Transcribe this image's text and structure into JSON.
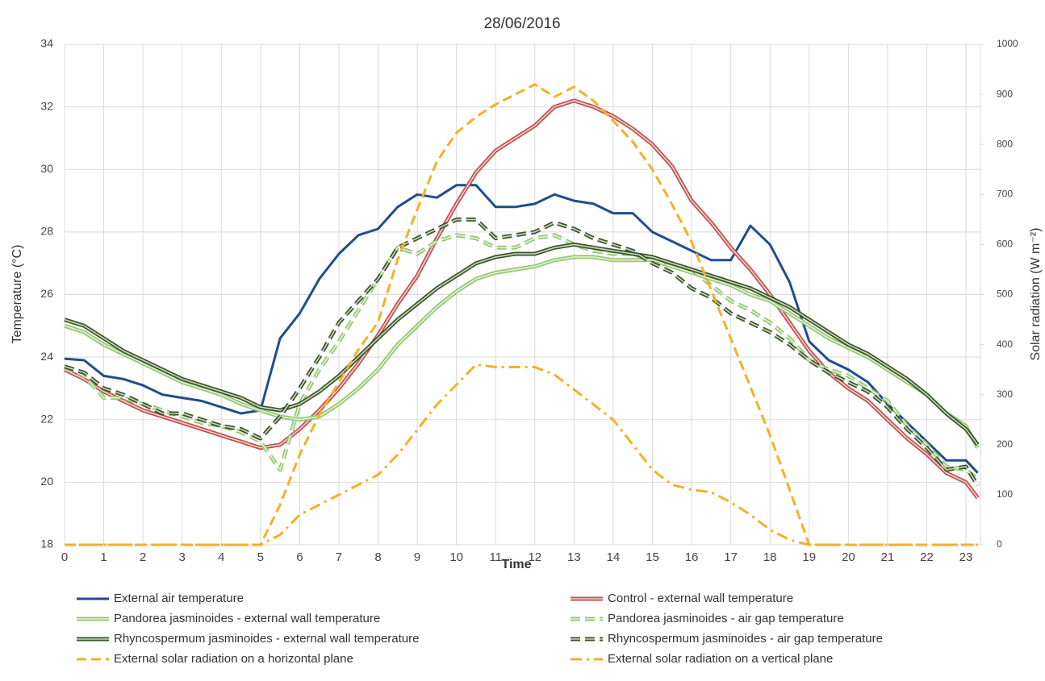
{
  "chart_data": {
    "type": "line",
    "title": "28/06/2016",
    "xlabel": "Time",
    "ylabel": "Temperature (°C)",
    "y2label": "Solar radiation (W m⁻²)",
    "grid": true,
    "legend": "bottom",
    "xlim": [
      0,
      23.37
    ],
    "xticks": [
      0,
      1,
      2,
      3,
      4,
      5,
      6,
      7,
      8,
      9,
      10,
      11,
      12,
      13,
      14,
      15,
      16,
      17,
      18,
      19,
      20,
      21,
      22,
      23
    ],
    "ylim": [
      18,
      34
    ],
    "yticks": [
      18,
      20,
      22,
      24,
      26,
      28,
      30,
      32,
      34
    ],
    "y2lim": [
      0,
      1000
    ],
    "y2ticks": [
      0,
      100,
      200,
      300,
      400,
      500,
      600,
      700,
      800,
      900,
      1000
    ],
    "x": [
      0,
      0.5,
      1,
      1.5,
      2,
      2.5,
      3,
      3.5,
      4,
      4.5,
      5,
      5.5,
      6,
      6.5,
      7,
      7.5,
      8,
      8.5,
      9,
      9.5,
      10,
      10.5,
      11,
      11.5,
      12,
      12.5,
      13,
      13.5,
      14,
      14.5,
      15,
      15.5,
      16,
      16.5,
      17,
      17.5,
      18,
      18.5,
      19,
      19.5,
      20,
      20.5,
      21,
      21.5,
      22,
      22.5,
      23,
      23.3
    ],
    "series": [
      {
        "name": "External air temperature",
        "color": "#1f4e8c",
        "style": "solid",
        "double": false,
        "values": [
          23.95,
          23.9,
          23.4,
          23.3,
          23.1,
          22.8,
          22.7,
          22.6,
          22.4,
          22.2,
          22.3,
          24.6,
          25.4,
          26.5,
          27.3,
          27.9,
          28.1,
          28.8,
          29.2,
          29.1,
          29.5,
          29.5,
          28.8,
          28.8,
          28.9,
          29.2,
          29.0,
          28.9,
          28.6,
          28.6,
          28.0,
          27.7,
          27.4,
          27.1,
          27.1,
          28.2,
          27.6,
          26.4,
          24.5,
          23.9,
          23.6,
          23.2,
          22.5,
          21.9,
          21.3,
          20.7,
          20.7,
          20.3
        ]
      },
      {
        "name": "Control - external wall temperature",
        "color": "#c0504d",
        "style": "solid",
        "double": true,
        "values": [
          23.6,
          23.3,
          22.9,
          22.6,
          22.3,
          22.1,
          21.9,
          21.7,
          21.5,
          21.3,
          21.1,
          21.2,
          21.7,
          22.3,
          23.0,
          23.8,
          24.7,
          25.7,
          26.6,
          27.8,
          28.9,
          29.9,
          30.6,
          31.0,
          31.4,
          32.0,
          32.2,
          32.0,
          31.7,
          31.3,
          30.8,
          30.1,
          29.0,
          28.3,
          27.5,
          26.8,
          26.0,
          25.1,
          24.2,
          23.5,
          23.0,
          22.6,
          22.0,
          21.4,
          20.9,
          20.3,
          20.0,
          19.5
        ]
      },
      {
        "name": "Pandorea jasminoides - external wall temperature",
        "color": "#92c86f",
        "style": "solid",
        "double": true,
        "values": [
          25.0,
          24.8,
          24.4,
          24.1,
          23.8,
          23.5,
          23.2,
          23.0,
          22.8,
          22.5,
          22.3,
          22.1,
          22.0,
          22.1,
          22.5,
          23.0,
          23.6,
          24.4,
          25.0,
          25.6,
          26.1,
          26.5,
          26.7,
          26.8,
          26.9,
          27.1,
          27.2,
          27.2,
          27.1,
          27.1,
          27.1,
          26.9,
          26.7,
          26.5,
          26.3,
          26.0,
          25.8,
          25.4,
          25.0,
          24.6,
          24.3,
          24.0,
          23.6,
          23.2,
          22.8,
          22.2,
          21.8,
          21.1
        ]
      },
      {
        "name": "Pandorea jasminoides - air gap temperature",
        "color": "#92c86f",
        "style": "dashed",
        "double": true,
        "values": [
          23.7,
          23.4,
          22.7,
          22.7,
          22.5,
          22.3,
          22.1,
          21.9,
          21.8,
          21.6,
          21.3,
          20.4,
          22.5,
          23.6,
          24.5,
          25.5,
          26.5,
          27.5,
          27.3,
          27.7,
          27.9,
          27.8,
          27.5,
          27.5,
          27.8,
          27.9,
          27.6,
          27.4,
          27.3,
          27.3,
          27.1,
          27.0,
          26.8,
          26.3,
          25.8,
          25.5,
          25.1,
          24.6,
          23.9,
          23.6,
          23.4,
          23.0,
          22.6,
          21.8,
          21.2,
          20.5,
          20.4,
          20.1
        ]
      },
      {
        "name": "Rhyncospermum jasminoides  - external wall temperature",
        "color": "#375623",
        "style": "solid",
        "double": true,
        "values": [
          25.2,
          25.0,
          24.6,
          24.2,
          23.9,
          23.6,
          23.3,
          23.1,
          22.9,
          22.7,
          22.4,
          22.3,
          22.5,
          22.9,
          23.4,
          24.0,
          24.6,
          25.2,
          25.7,
          26.2,
          26.6,
          27.0,
          27.2,
          27.3,
          27.3,
          27.5,
          27.6,
          27.5,
          27.4,
          27.3,
          27.2,
          27.0,
          26.8,
          26.6,
          26.4,
          26.2,
          25.9,
          25.6,
          25.2,
          24.8,
          24.4,
          24.1,
          23.7,
          23.3,
          22.8,
          22.2,
          21.7,
          21.2
        ]
      },
      {
        "name": "Rhyncospermum jasminoides - air gap temperature",
        "color": "#375623",
        "style": "dashed",
        "double": true,
        "values": [
          23.7,
          23.5,
          23.0,
          22.8,
          22.5,
          22.2,
          22.2,
          22.0,
          21.8,
          21.7,
          21.4,
          22.1,
          23.0,
          24.0,
          25.1,
          25.8,
          26.5,
          27.5,
          27.8,
          28.1,
          28.4,
          28.4,
          27.8,
          27.9,
          28.0,
          28.3,
          28.1,
          27.8,
          27.6,
          27.4,
          27.0,
          26.7,
          26.2,
          25.9,
          25.4,
          25.1,
          24.8,
          24.4,
          23.9,
          23.5,
          23.2,
          22.9,
          22.4,
          21.7,
          21.1,
          20.4,
          20.5,
          19.9
        ]
      },
      {
        "name": "External solar radiation on a horizontal plane",
        "color": "#f5b025",
        "style": "dashed",
        "double": false,
        "axis": "y2",
        "values": [
          0,
          0,
          0,
          0,
          0,
          0,
          0,
          0,
          0,
          0,
          0,
          80,
          180,
          260,
          325,
          390,
          445,
          570,
          670,
          766,
          823,
          855,
          880,
          900,
          920,
          895,
          915,
          887,
          847,
          805,
          750,
          680,
          605,
          509,
          412,
          316,
          219,
          110,
          0,
          0,
          0,
          0,
          0,
          0,
          0,
          0,
          0,
          0
        ]
      },
      {
        "name": "External solar radiation on a vertical plane",
        "color": "#f5b025",
        "style": "dashdot",
        "double": false,
        "axis": "y2",
        "values": [
          0,
          0,
          0,
          0,
          0,
          0,
          0,
          0,
          0,
          0,
          0,
          20,
          60,
          80,
          100,
          120,
          140,
          180,
          230,
          280,
          320,
          360,
          355,
          355,
          355,
          340,
          310,
          280,
          250,
          200,
          150,
          120,
          110,
          105,
          85,
          60,
          30,
          10,
          0,
          0,
          0,
          0,
          0,
          0,
          0,
          0,
          0,
          0
        ]
      }
    ]
  }
}
